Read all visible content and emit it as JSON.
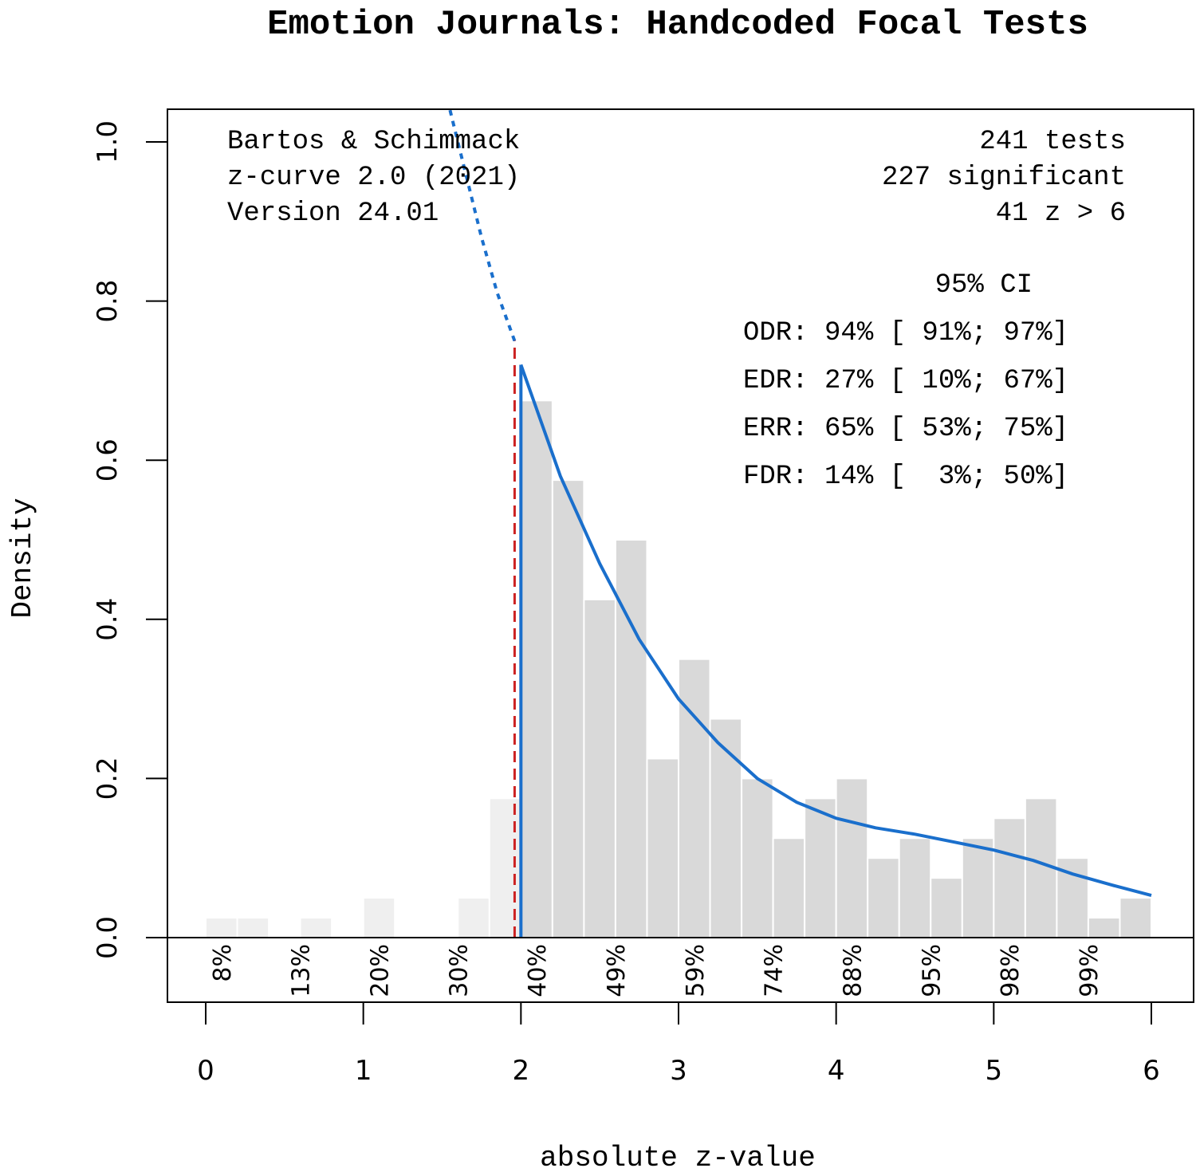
{
  "chart_data": {
    "type": "bar",
    "title": "Emotion Journals: Handcoded Focal Tests",
    "xlabel": "absolute z-value",
    "ylabel": "Density",
    "xlim": [
      0,
      6
    ],
    "ylim": [
      0,
      1.0
    ],
    "x_ticks": [
      "0",
      "1",
      "2",
      "3",
      "4",
      "5",
      "6"
    ],
    "y_ticks": [
      "0.0",
      "0.2",
      "0.4",
      "0.6",
      "0.8",
      "1.0"
    ],
    "bin_width": 0.2,
    "bin_starts": [
      0,
      0.2,
      0.4,
      0.6,
      0.8,
      1.0,
      1.2,
      1.4,
      1.6,
      1.8,
      2.0,
      2.2,
      2.4,
      2.6,
      2.8,
      3.0,
      3.2,
      3.4,
      3.6,
      3.8,
      4.0,
      4.2,
      4.4,
      4.6,
      4.8,
      5.0,
      5.2,
      5.4,
      5.6,
      5.8
    ],
    "values": [
      0.025,
      0.025,
      0,
      0.025,
      0,
      0.05,
      0,
      0,
      0.05,
      0.175,
      0.675,
      0.575,
      0.425,
      0.5,
      0.225,
      0.35,
      0.275,
      0.2,
      0.125,
      0.175,
      0.2,
      0.1,
      0.125,
      0.075,
      0.125,
      0.15,
      0.175,
      0.1,
      0.025,
      0.05
    ],
    "significance_threshold": 1.96,
    "curve_fitted": {
      "x": [
        2.0,
        2.25,
        2.5,
        2.75,
        3.0,
        3.25,
        3.5,
        3.75,
        4.0,
        4.25,
        4.5,
        4.75,
        5.0,
        5.25,
        5.5,
        5.75,
        6.0
      ],
      "y": [
        0.72,
        0.58,
        0.47,
        0.375,
        0.3,
        0.245,
        0.2,
        0.17,
        0.15,
        0.138,
        0.13,
        0.12,
        0.11,
        0.097,
        0.08,
        0.066,
        0.053
      ]
    },
    "curve_extrapolated": {
      "x": [
        1.55,
        1.65,
        1.75,
        1.85,
        1.96
      ],
      "y": [
        1.04,
        0.96,
        0.88,
        0.81,
        0.75
      ]
    },
    "power_labels": [
      {
        "x": 0.1,
        "label": "8%"
      },
      {
        "x": 0.6,
        "label": "13%"
      },
      {
        "x": 1.1,
        "label": "20%"
      },
      {
        "x": 1.6,
        "label": "30%"
      },
      {
        "x": 2.1,
        "label": "40%"
      },
      {
        "x": 2.6,
        "label": "49%"
      },
      {
        "x": 3.1,
        "label": "59%"
      },
      {
        "x": 3.6,
        "label": "74%"
      },
      {
        "x": 4.1,
        "label": "88%"
      },
      {
        "x": 4.6,
        "label": "95%"
      },
      {
        "x": 5.1,
        "label": "98%"
      },
      {
        "x": 5.6,
        "label": "99%"
      }
    ],
    "annotations_left": [
      "Bartos & Schimmack",
      "z-curve 2.0 (2021)",
      "Version 24.01"
    ],
    "annotations_right": [
      "241 tests",
      "227 significant",
      "41 z > 6"
    ],
    "ci_header": "95% CI",
    "ci_rows": [
      "ODR: 94% [ 91%; 97%]",
      "EDR: 27% [ 10%; 67%]",
      "ERR: 65% [ 53%; 75%]",
      "FDR: 14% [  3%; 50%]"
    ],
    "colors": {
      "bar_sig": "#d9d9d9",
      "bar_nonsig": "#efefef",
      "curve": "#1a6fcc",
      "threshold": "#cc2222"
    }
  }
}
